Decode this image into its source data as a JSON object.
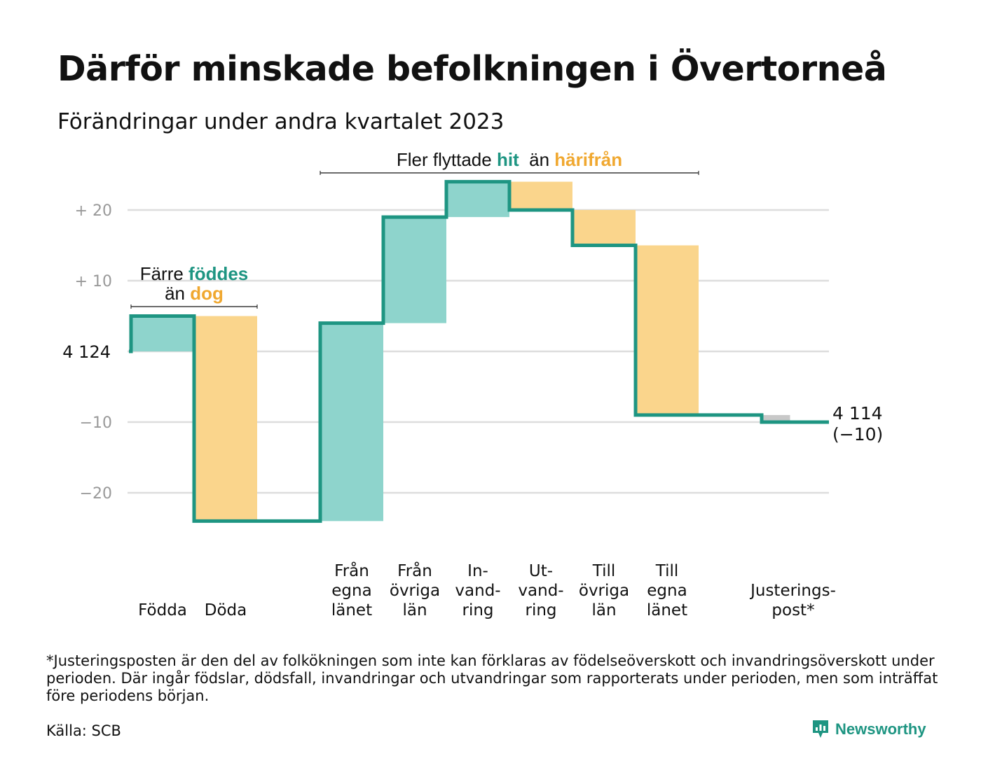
{
  "title": "Därför minskade befolkningen i Övertorneå",
  "subtitle": "Förändringar under andra kvartalet 2023",
  "footnote": "*Justeringsposten är den del av folkökningen som inte kan förklaras av födelseöverskott och invandringsöverskott under perioden. Där ingår födslar, dödsfall, invandringar och utvandringar som rapporterats under perioden, men som inträffat före periodens början.",
  "source": "Källa: SCB",
  "logo": {
    "text": "Newsworthy"
  },
  "colors": {
    "increase": "#8ED4CC",
    "decrease": "#FAD58C",
    "adjustment": "#C8C8C8",
    "line": "#1E9582",
    "accent_teal": "#1E9582",
    "accent_orange": "#F0A830",
    "grid": "#DDDDDD",
    "tick": "#999999"
  },
  "chart_data": {
    "type": "waterfall",
    "start_label": "4  124",
    "start_value": 4124,
    "end_value": 4114,
    "end_label_line1": "4 114",
    "end_label_line2": "(−10)",
    "yticks": [
      {
        "value": 20,
        "label": "+  20"
      },
      {
        "value": 10,
        "label": "+  10"
      },
      {
        "value": 0,
        "label": ""
      },
      {
        "value": -10,
        "label": "−10"
      },
      {
        "value": -20,
        "label": "−20"
      }
    ],
    "ylim": [
      -24,
      24
    ],
    "steps": [
      {
        "label": [
          "",
          "",
          "Födda"
        ],
        "value": 5,
        "kind": "increase"
      },
      {
        "label": [
          "",
          "",
          "Döda"
        ],
        "value": -29,
        "kind": "decrease"
      },
      {
        "label": [
          "",
          "",
          ""
        ],
        "value": 0,
        "kind": "gap"
      },
      {
        "label": [
          "Från",
          "egna",
          "länet"
        ],
        "value": 28,
        "kind": "increase"
      },
      {
        "label": [
          "Från",
          "övriga",
          "län"
        ],
        "value": 15,
        "kind": "increase"
      },
      {
        "label": [
          "In-",
          "vand-",
          "ring"
        ],
        "value": 5,
        "kind": "increase"
      },
      {
        "label": [
          "Ut-",
          "vand-",
          "ring"
        ],
        "value": -4,
        "kind": "decrease"
      },
      {
        "label": [
          "Till",
          "övriga",
          "län"
        ],
        "value": -5,
        "kind": "decrease"
      },
      {
        "label": [
          "Till",
          "egna",
          "länet"
        ],
        "value": -24,
        "kind": "decrease"
      },
      {
        "label": [
          "",
          "",
          ""
        ],
        "value": 0,
        "kind": "gap"
      },
      {
        "label": [
          "",
          "Justerings-",
          "post*"
        ],
        "value": -1,
        "kind": "adjustment"
      }
    ],
    "annotations": [
      {
        "lines": [
          [
            {
              "text": "Färre ",
              "color": "#111111"
            },
            {
              "text": "föddes",
              "color": "#1E9582",
              "bold": true
            }
          ],
          [
            {
              "text": "än ",
              "color": "#111111"
            },
            {
              "text": "dog",
              "color": "#F0A830",
              "bold": true
            }
          ]
        ],
        "from_step": 0,
        "to_step": 1
      },
      {
        "lines": [
          [
            {
              "text": "Fler flyttade ",
              "color": "#111111"
            },
            {
              "text": "hit",
              "color": "#1E9582",
              "bold": true
            },
            {
              "text": "  än ",
              "color": "#111111"
            },
            {
              "text": "härifrån",
              "color": "#F0A830",
              "bold": true
            }
          ]
        ],
        "from_step": 3,
        "to_step": 8
      }
    ]
  }
}
